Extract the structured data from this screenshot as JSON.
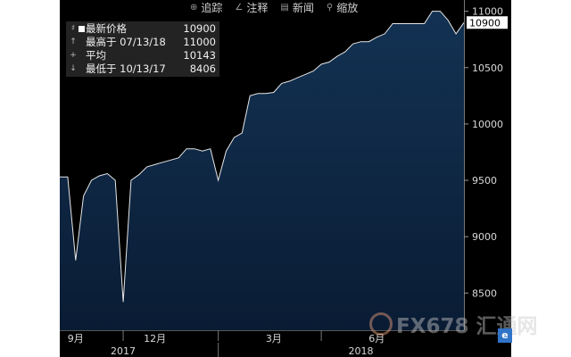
{
  "toolbar": {
    "items": [
      {
        "label": "追踪",
        "icon": "crosshair-icon"
      },
      {
        "label": "注释",
        "icon": "pencil-icon"
      },
      {
        "label": "新闻",
        "icon": "news-icon"
      },
      {
        "label": "缩放",
        "icon": "zoom-icon"
      }
    ]
  },
  "legend": {
    "rows": [
      {
        "label": "最新价格",
        "value": "10900"
      },
      {
        "label": "最高于 07/13/18",
        "value": "11000"
      },
      {
        "label": "平均",
        "value": "10143"
      },
      {
        "label": "最低于 10/13/17",
        "value": "8406"
      }
    ]
  },
  "watermark": {
    "text": "FX678 汇通网",
    "badge": "e"
  },
  "colors": {
    "background": "#000000",
    "area_top": "#133253",
    "area_bottom": "#0b1f38",
    "line": "#e6e6e6",
    "last_price_tag": "#ffffff"
  },
  "chart_data": {
    "type": "area",
    "title": "",
    "xlabel": "",
    "ylabel": "",
    "ylim": [
      8170,
      11100
    ],
    "y_ticks": [
      8500,
      9000,
      9500,
      10000,
      10500,
      11000
    ],
    "y_tick_labels": [
      "8500",
      "9000",
      "9500",
      "10000",
      "10500",
      "11000"
    ],
    "x_tick_labels": [
      "9月",
      "12月",
      "3月",
      "6月"
    ],
    "x_year_labels": [
      "2017",
      "2018"
    ],
    "last_price_label": "10900",
    "grid": false,
    "legend_position": "top-left",
    "series": [
      {
        "values": [
          9530,
          9530,
          8790,
          9360,
          9500,
          9540,
          9560,
          9500,
          8420,
          9500,
          9550,
          9620,
          9640,
          9660,
          9680,
          9700,
          9780,
          9780,
          9760,
          9780,
          9500,
          9760,
          9880,
          9920,
          10250,
          10270,
          10270,
          10280,
          10360,
          10380,
          10410,
          10440,
          10470,
          10530,
          10550,
          10600,
          10640,
          10710,
          10730,
          10730,
          10770,
          10800,
          10890,
          10890,
          10890,
          10890,
          10890,
          11000,
          11000,
          10920,
          10800,
          10900
        ]
      }
    ]
  }
}
